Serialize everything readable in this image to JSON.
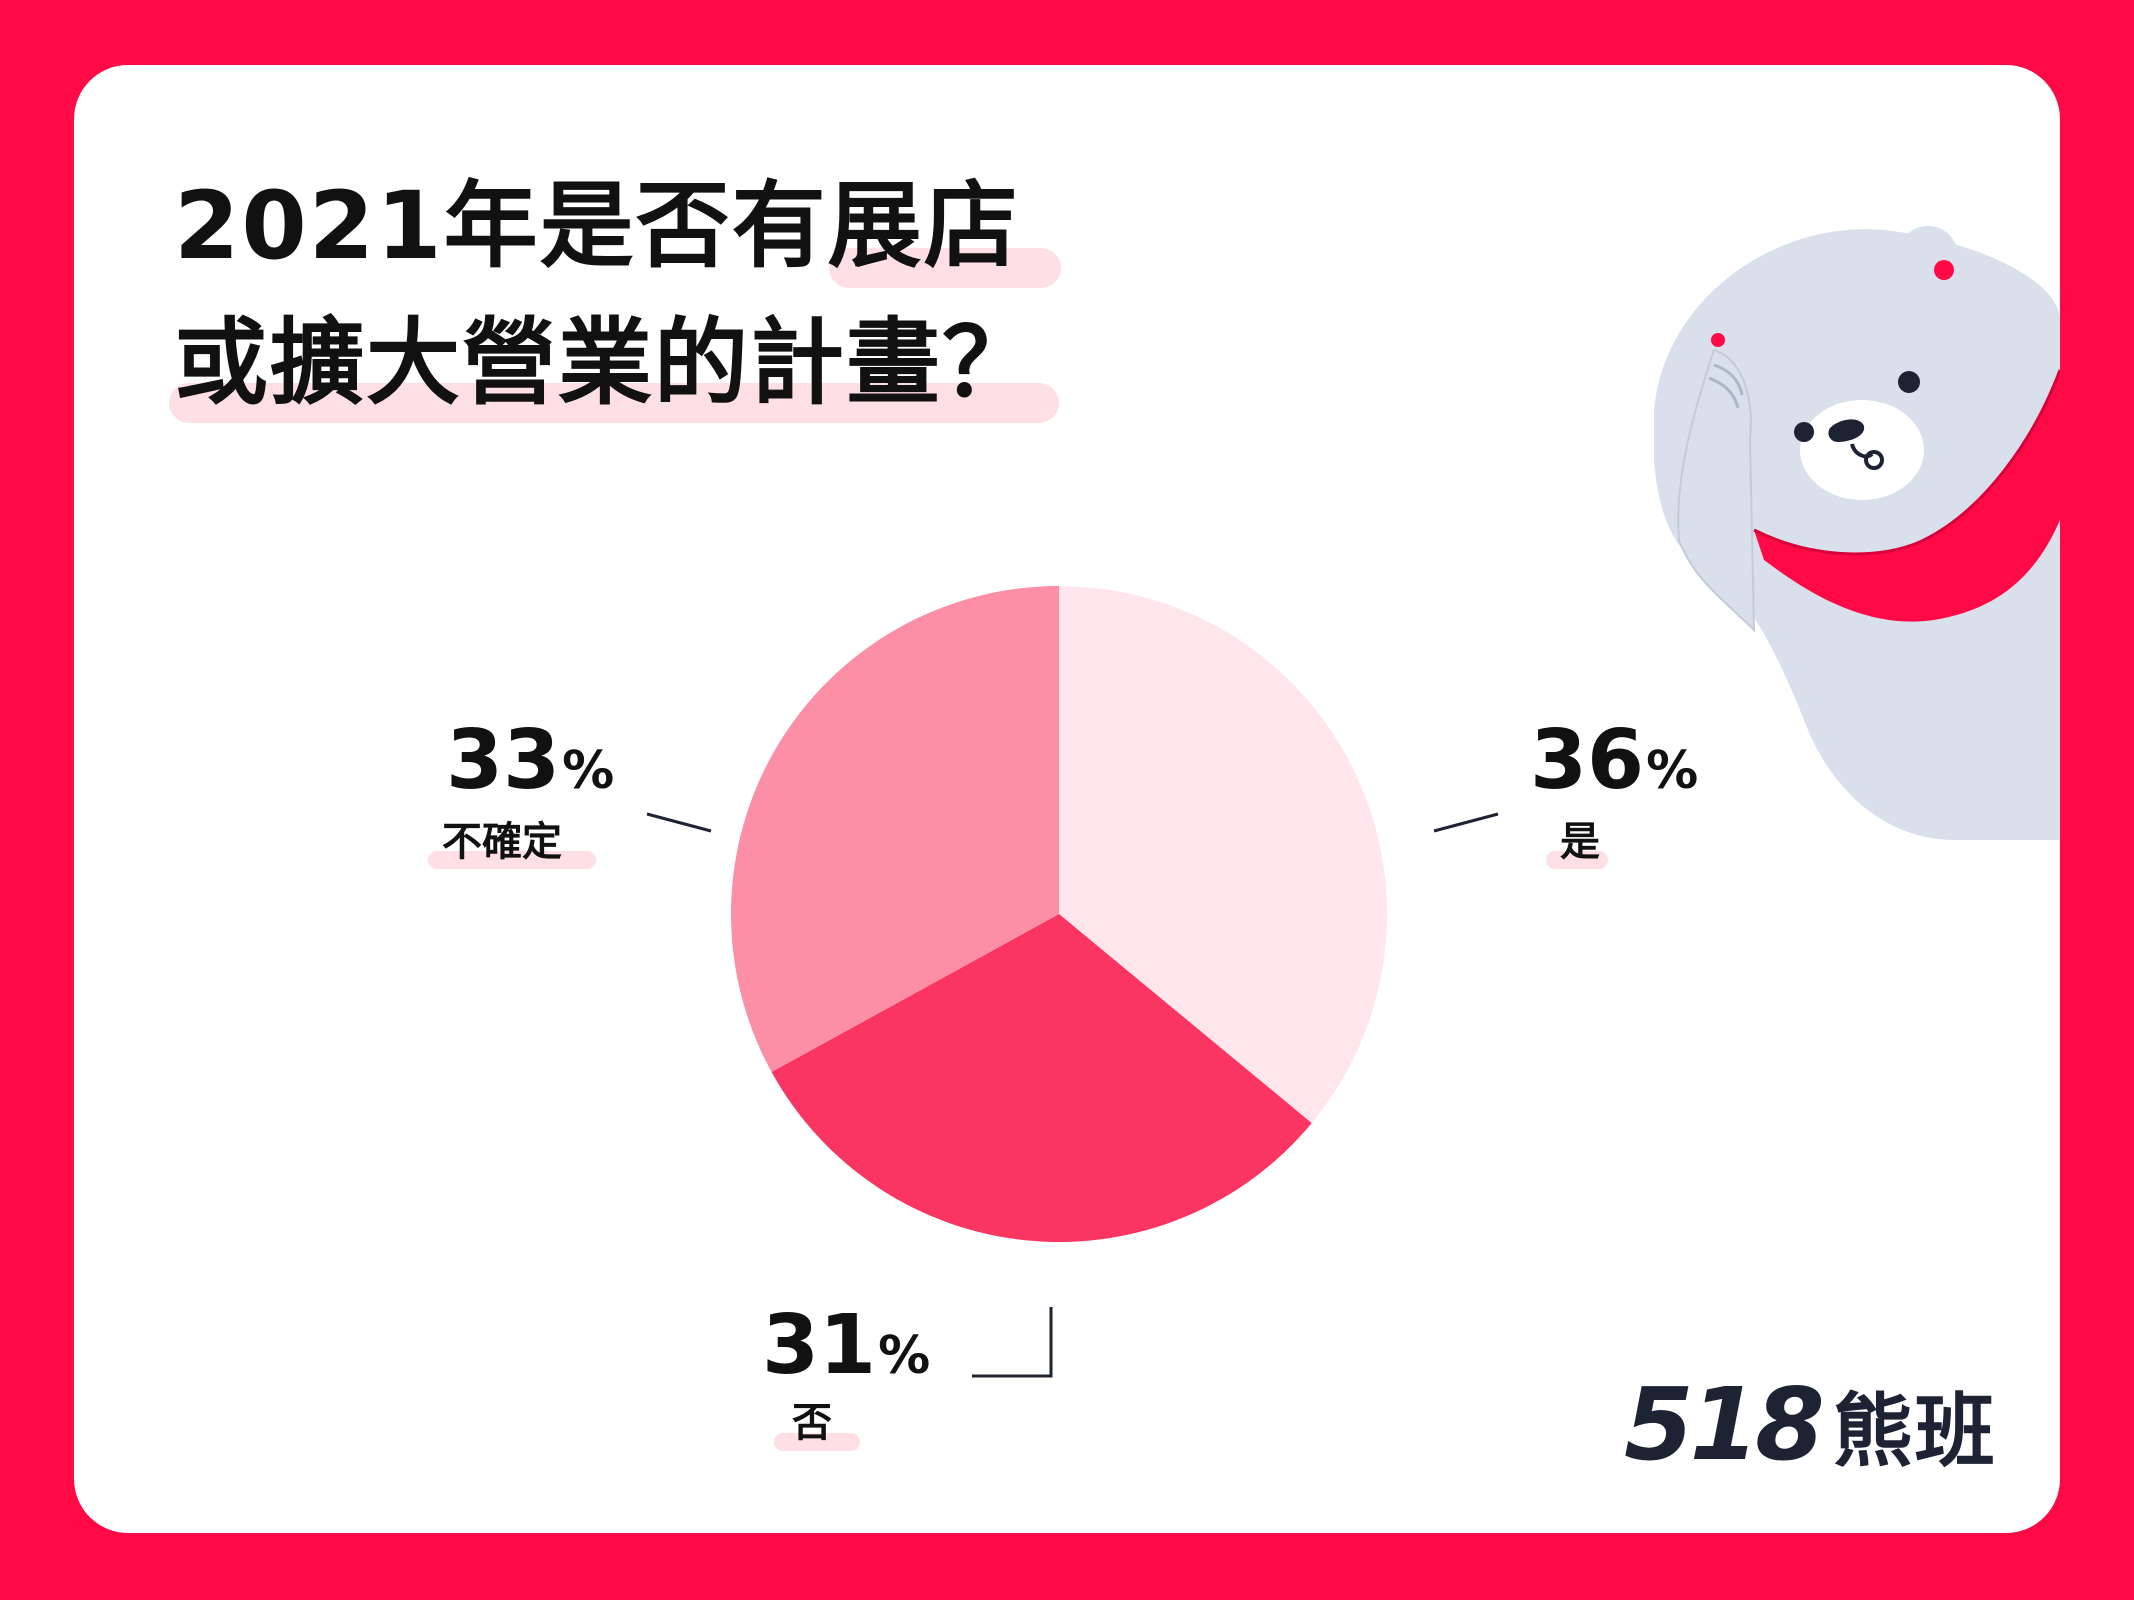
{
  "title": {
    "line1": "2021年是否有展店",
    "line2": "或擴大營業的計畫？"
  },
  "colors": {
    "background": "#ff0a47",
    "card": "#ffffff",
    "highlight": "#ffdfe6",
    "slice_yes": "#ffe6ec",
    "slice_no": "#fb3562",
    "slice_unsure": "#fc8fa5",
    "text": "#111111"
  },
  "chart_data": {
    "type": "pie",
    "title": "2021年是否有展店或擴大營業的計畫？",
    "slices": [
      {
        "label": "是",
        "value": 36,
        "display": "36",
        "unit": "%"
      },
      {
        "label": "否",
        "value": 31,
        "display": "31",
        "unit": "%"
      },
      {
        "label": "不確定",
        "value": 33,
        "display": "33",
        "unit": "%"
      }
    ],
    "start_angle_deg": 0,
    "direction": "clockwise"
  },
  "logo": {
    "digits": "518",
    "name": "熊班"
  },
  "illustration": "bear-mascot-icon"
}
